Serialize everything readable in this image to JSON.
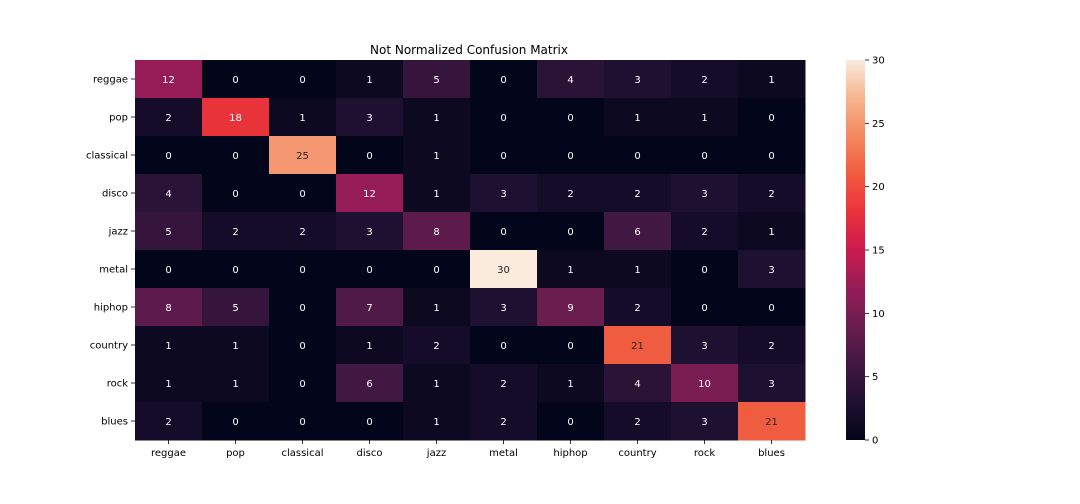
{
  "chart_data": {
    "type": "heatmap",
    "title": "Not Normalized Confusion Matrix",
    "xlabel": "",
    "ylabel": "",
    "x_labels": [
      "reggae",
      "pop",
      "classical",
      "disco",
      "jazz",
      "metal",
      "hiphop",
      "country",
      "rock",
      "blues"
    ],
    "y_labels": [
      "reggae",
      "pop",
      "classical",
      "disco",
      "jazz",
      "metal",
      "hiphop",
      "country",
      "rock",
      "blues"
    ],
    "matrix": [
      [
        12,
        0,
        0,
        1,
        5,
        0,
        4,
        3,
        2,
        1
      ],
      [
        2,
        18,
        1,
        3,
        1,
        0,
        0,
        1,
        1,
        0
      ],
      [
        0,
        0,
        25,
        0,
        1,
        0,
        0,
        0,
        0,
        0
      ],
      [
        4,
        0,
        0,
        12,
        1,
        3,
        2,
        2,
        3,
        2
      ],
      [
        5,
        2,
        2,
        3,
        8,
        0,
        0,
        6,
        2,
        1
      ],
      [
        0,
        0,
        0,
        0,
        0,
        30,
        1,
        1,
        0,
        3
      ],
      [
        8,
        5,
        0,
        7,
        1,
        3,
        9,
        2,
        0,
        0
      ],
      [
        1,
        1,
        0,
        1,
        2,
        0,
        0,
        21,
        3,
        2
      ],
      [
        1,
        1,
        0,
        6,
        1,
        2,
        1,
        4,
        10,
        3
      ],
      [
        2,
        0,
        0,
        0,
        1,
        2,
        0,
        2,
        3,
        21
      ]
    ],
    "vmin": 0,
    "vmax": 30,
    "colorbar_ticks": [
      0,
      5,
      10,
      15,
      20,
      25,
      30
    ],
    "colormap": "rocket",
    "annotations": true
  }
}
